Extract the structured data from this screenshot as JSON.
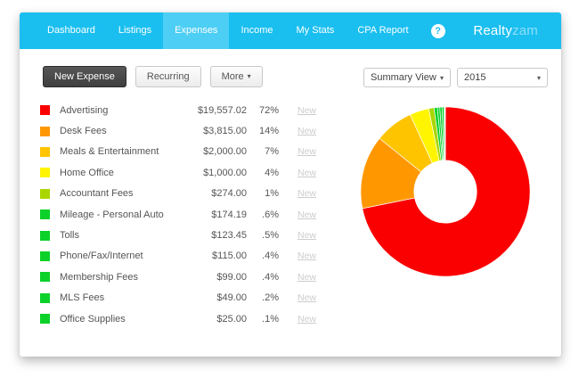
{
  "nav": {
    "items": [
      {
        "label": "Dashboard",
        "active": false
      },
      {
        "label": "Listings",
        "active": false
      },
      {
        "label": "Expenses",
        "active": true
      },
      {
        "label": "Income",
        "active": false
      },
      {
        "label": "My Stats",
        "active": false
      },
      {
        "label": "CPA Report",
        "active": false
      }
    ],
    "help_label": "?",
    "logo_primary": "Realty",
    "logo_secondary": "zam",
    "bar_color": "#1abff0",
    "active_item_color": "#4dcef4"
  },
  "toolbar": {
    "new_expense_label": "New Expense",
    "recurring_label": "Recurring",
    "more_label": "More",
    "caret": "▾"
  },
  "filters": {
    "view_selected": "Summary View",
    "year_selected": "2015",
    "caret": "▾"
  },
  "expenses": {
    "new_link_label": "New",
    "rows": [
      {
        "category": "Advertising",
        "amount": "$19,557.02",
        "percent": "72%",
        "color": "#fb0000"
      },
      {
        "category": "Desk Fees",
        "amount": "$3,815.00",
        "percent": "14%",
        "color": "#ff9800"
      },
      {
        "category": "Meals & Entertainment",
        "amount": "$2,000.00",
        "percent": "7%",
        "color": "#ffc400"
      },
      {
        "category": "Home Office",
        "amount": "$1,000.00",
        "percent": "4%",
        "color": "#fff500"
      },
      {
        "category": "Accountant Fees",
        "amount": "$274.00",
        "percent": "1%",
        "color": "#aad500"
      },
      {
        "category": "Mileage - Personal Auto",
        "amount": "$174.19",
        "percent": ".6%",
        "color": "#0bd129"
      },
      {
        "category": "Tolls",
        "amount": "$123.45",
        "percent": ".5%",
        "color": "#0bd129"
      },
      {
        "category": "Phone/Fax/Internet",
        "amount": "$115.00",
        "percent": ".4%",
        "color": "#0bd129"
      },
      {
        "category": "Membership Fees",
        "amount": "$99.00",
        "percent": ".4%",
        "color": "#0bd129"
      },
      {
        "category": "MLS Fees",
        "amount": "$49.00",
        "percent": ".2%",
        "color": "#0bd129"
      },
      {
        "category": "Office Supplies",
        "amount": "$25.00",
        "percent": ".1%",
        "color": "#0bd129"
      }
    ]
  },
  "chart_data": {
    "type": "pie",
    "subtype": "donut",
    "donut_hole_ratio": 0.37,
    "start_angle_deg": 0,
    "direction": "clockwise",
    "legend_position": "none",
    "categories": [
      "Advertising",
      "Desk Fees",
      "Meals & Entertainment",
      "Home Office",
      "Accountant Fees",
      "Mileage - Personal Auto",
      "Tolls",
      "Phone/Fax/Internet",
      "Membership Fees",
      "MLS Fees",
      "Office Supplies"
    ],
    "values": [
      19557.02,
      3815.0,
      2000.0,
      1000.0,
      274.0,
      174.19,
      123.45,
      115.0,
      99.0,
      49.0,
      25.0
    ],
    "percent_labels": [
      "72%",
      "14%",
      "7%",
      "4%",
      "1%",
      ".6%",
      ".5%",
      ".4%",
      ".4%",
      ".2%",
      ".1%"
    ],
    "colors": [
      "#fb0000",
      "#ff9800",
      "#ffc400",
      "#fff500",
      "#aad500",
      "#0bd129",
      "#0bd129",
      "#0bd129",
      "#0bd129",
      "#0bd129",
      "#0bd129"
    ]
  }
}
